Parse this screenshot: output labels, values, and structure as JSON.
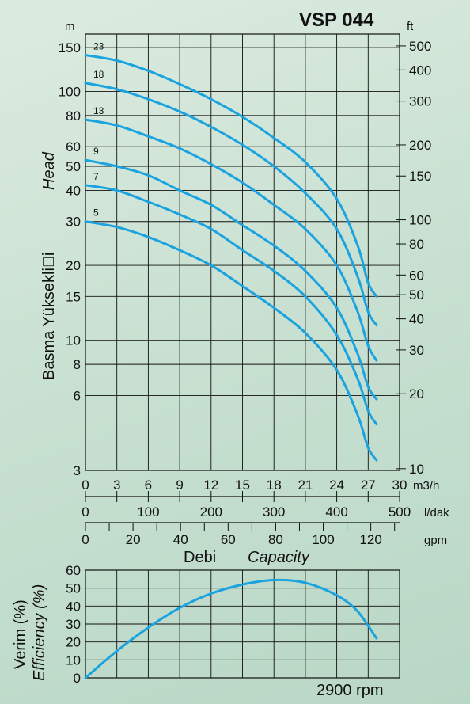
{
  "title": "VSP 044",
  "colors": {
    "curve": "#1ba3e0",
    "grid": "#111111"
  },
  "chart_data": [
    {
      "type": "line",
      "name": "head",
      "y_scale": "log",
      "xlim": [
        0,
        30
      ],
      "ylim": [
        3,
        170
      ],
      "left_unit": "m",
      "right_unit": "ft",
      "ylabel": "Basma Yüksekli\u0000i",
      "ylabel_italic": "Head",
      "xlabel": "Debi",
      "xlabel_italic": "Capacity",
      "grid": true,
      "left_ticks": [
        3,
        6,
        8,
        10,
        15,
        20,
        30,
        40,
        50,
        60,
        80,
        100,
        150
      ],
      "right_ticks": [
        10,
        20,
        30,
        40,
        50,
        60,
        80,
        100,
        150,
        200,
        300,
        400,
        500
      ],
      "x_axes": [
        {
          "unit": "m3/h",
          "ticks": [
            0,
            3,
            6,
            9,
            12,
            15,
            18,
            21,
            24,
            27,
            30
          ]
        },
        {
          "unit": "l/dak",
          "ticks": [
            0,
            100,
            200,
            300,
            400,
            500
          ]
        },
        {
          "unit": "gpm",
          "ticks": [
            0,
            20,
            40,
            60,
            80,
            100,
            120
          ]
        }
      ],
      "series": [
        {
          "name": "23",
          "x": [
            0,
            3,
            6,
            9,
            12,
            15,
            18,
            21,
            24,
            26,
            27,
            27.8
          ],
          "y": [
            140,
            133,
            121,
            107,
            93,
            79,
            65,
            52,
            37,
            24,
            17,
            15
          ]
        },
        {
          "name": "18",
          "x": [
            0,
            3,
            6,
            9,
            12,
            15,
            18,
            21,
            24,
            26,
            27,
            27.8
          ],
          "y": [
            108,
            102,
            93,
            83,
            72,
            61,
            50,
            39,
            28,
            18,
            13,
            11.5
          ]
        },
        {
          "name": "13",
          "x": [
            0,
            3,
            6,
            9,
            12,
            15,
            18,
            21,
            24,
            26,
            27,
            27.8
          ],
          "y": [
            77,
            73,
            66,
            59,
            51,
            43,
            35,
            28,
            20,
            13,
            9.5,
            8.3
          ]
        },
        {
          "name": "9",
          "x": [
            0,
            3,
            6,
            9,
            12,
            15,
            18,
            21,
            24,
            26,
            27,
            27.8
          ],
          "y": [
            53,
            50,
            46,
            40,
            35,
            29,
            24,
            19,
            13.5,
            8.8,
            6.5,
            5.8
          ]
        },
        {
          "name": "7",
          "x": [
            0,
            3,
            6,
            9,
            12,
            15,
            18,
            21,
            24,
            26,
            27,
            27.8
          ],
          "y": [
            42,
            40,
            36,
            32,
            28,
            23,
            19,
            15,
            10.5,
            7,
            5.2,
            4.6
          ]
        },
        {
          "name": "5",
          "x": [
            0,
            3,
            6,
            9,
            12,
            15,
            18,
            21,
            24,
            26,
            27,
            27.8
          ],
          "y": [
            30,
            28.5,
            26,
            23,
            20,
            16.5,
            13.5,
            10.7,
            7.6,
            5,
            3.7,
            3.3
          ]
        }
      ]
    },
    {
      "type": "line",
      "name": "efficiency",
      "xlim": [
        0,
        30
      ],
      "ylim": [
        0,
        60
      ],
      "ylabel": "Verim (%)",
      "ylabel_italic": "Efficiency (%)",
      "y_ticks": [
        0,
        10,
        20,
        30,
        40,
        50,
        60
      ],
      "footer": "2900 rpm",
      "grid": true,
      "series": [
        {
          "x": [
            0,
            3,
            6,
            9,
            12,
            15,
            18,
            21,
            24,
            26,
            27.8
          ],
          "y": [
            0,
            15,
            28,
            39,
            47,
            52,
            54.5,
            53,
            46,
            37,
            22
          ]
        }
      ]
    }
  ]
}
